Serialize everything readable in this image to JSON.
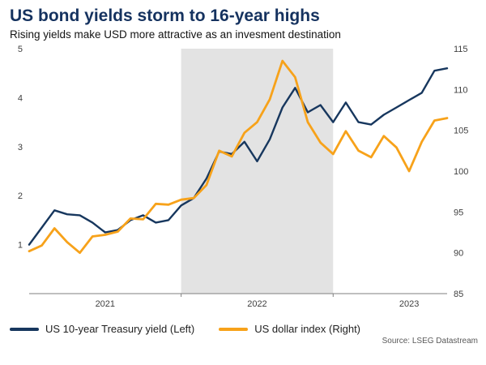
{
  "source": "Source: LSEG Datastream",
  "chart_data": {
    "type": "line",
    "title": "US bond yields storm to 16-year highs",
    "subtitle": "Rising yields make USD more attractive as an invesment destination",
    "grid": false,
    "legend_position": "bottom",
    "x": [
      "2021-01",
      "2021-02",
      "2021-03",
      "2021-04",
      "2021-05",
      "2021-06",
      "2021-07",
      "2021-08",
      "2021-09",
      "2021-10",
      "2021-11",
      "2021-12",
      "2022-01",
      "2022-02",
      "2022-03",
      "2022-04",
      "2022-05",
      "2022-06",
      "2022-07",
      "2022-08",
      "2022-09",
      "2022-10",
      "2022-11",
      "2022-12",
      "2023-01",
      "2023-02",
      "2023-03",
      "2023-04",
      "2023-05",
      "2023-06",
      "2023-07",
      "2023-08",
      "2023-09",
      "2023-10"
    ],
    "x_ticks": [
      {
        "label": "2021",
        "index": 6
      },
      {
        "label": "2022",
        "index": 18
      },
      {
        "label": "2023",
        "index": 30
      }
    ],
    "x_boundary_ticks": [
      12,
      24
    ],
    "left_axis": {
      "range": [
        0,
        5
      ],
      "ticks": [
        1,
        2,
        3,
        4,
        5
      ]
    },
    "right_axis": {
      "range": [
        85,
        115
      ],
      "ticks": [
        85,
        90,
        95,
        100,
        105,
        110,
        115
      ]
    },
    "band": {
      "from_index": 12,
      "to_index": 24,
      "color": "#e3e3e3",
      "label": "2022 shaded period"
    },
    "series": [
      {
        "name": "US 10-year Treasury yield (Left)",
        "axis": "left",
        "color": "#17375e",
        "width": 2.4,
        "values": [
          1.0,
          1.35,
          1.7,
          1.62,
          1.6,
          1.45,
          1.25,
          1.3,
          1.5,
          1.6,
          1.45,
          1.5,
          1.8,
          1.95,
          2.35,
          2.9,
          2.85,
          3.1,
          2.7,
          3.15,
          3.8,
          4.2,
          3.7,
          3.85,
          3.5,
          3.9,
          3.5,
          3.45,
          3.65,
          3.8,
          3.95,
          4.1,
          4.55,
          4.6
        ]
      },
      {
        "name": "US dollar index (Right)",
        "axis": "right",
        "color": "#f7a21a",
        "width": 2.8,
        "values": [
          90.2,
          90.9,
          93.0,
          91.3,
          90.0,
          92.0,
          92.2,
          92.6,
          94.2,
          94.1,
          96.0,
          95.9,
          96.5,
          96.7,
          98.3,
          102.5,
          101.8,
          104.7,
          106.0,
          108.8,
          113.5,
          111.5,
          106.0,
          103.5,
          102.1,
          104.9,
          102.5,
          101.7,
          104.3,
          102.9,
          100.0,
          103.6,
          106.2,
          106.5
        ]
      }
    ]
  }
}
